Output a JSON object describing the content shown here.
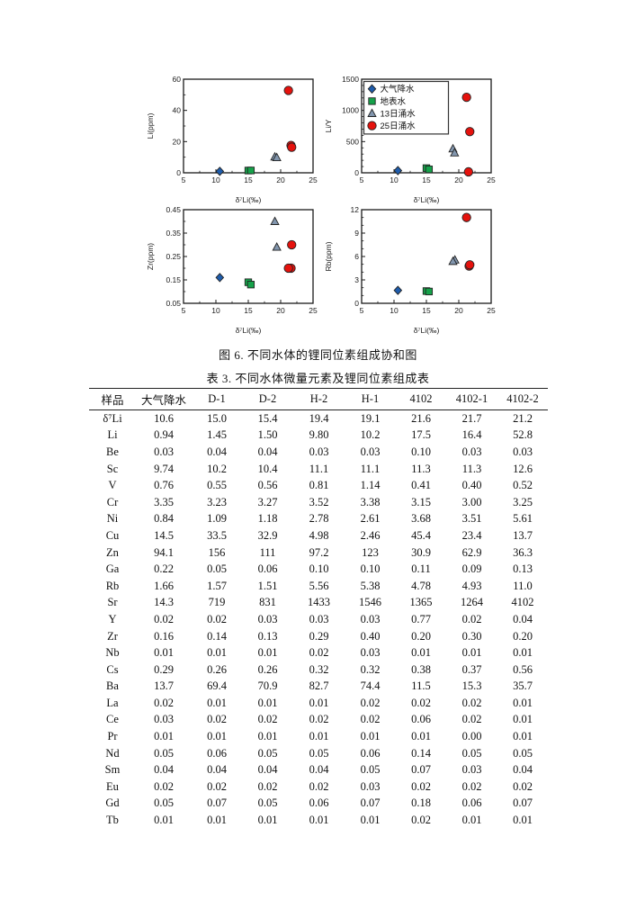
{
  "captions": {
    "figure": "图 6. 不同水体的锂同位素组成协和图",
    "table": "表 3. 不同水体微量元素及锂同位素组成表"
  },
  "colors": {
    "axis": "#1a1a1a",
    "marker_outline": "#222222",
    "precipitation_blue": "#1e5cac",
    "surface_green": "#16a24a",
    "inflow13_slate": "#8296ae",
    "inflow25_red": "#e5120d"
  },
  "legend": {
    "items": [
      {
        "label": "大气降水",
        "marker": "diamond",
        "color": "#1e5cac"
      },
      {
        "label": "地表水",
        "marker": "square",
        "color": "#16a24a"
      },
      {
        "label": "13日涌水",
        "marker": "triangle",
        "color": "#8296ae"
      },
      {
        "label": "25日涌水",
        "marker": "circle",
        "color": "#e5120d"
      }
    ]
  },
  "chart_data": [
    {
      "type": "scatter",
      "name": "li-ppm-vs-d7li",
      "xlabel": "δ⁷Li(‰)",
      "ylabel": "Li(ppm)",
      "xlim": [
        5,
        25
      ],
      "ylim": [
        0,
        60
      ],
      "xticks": [
        [
          5,
          "5"
        ],
        [
          10,
          "10"
        ],
        [
          15,
          "15"
        ],
        [
          20,
          "20"
        ],
        [
          25,
          "25"
        ]
      ],
      "yticks": [
        [
          0,
          "0"
        ],
        [
          20,
          "20"
        ],
        [
          40,
          "40"
        ],
        [
          60,
          "60"
        ]
      ],
      "xminor": [
        7.5,
        12.5,
        17.5,
        22.5
      ],
      "yminor": [
        10,
        30,
        50
      ],
      "legend": false,
      "series": [
        {
          "name": "大气降水",
          "points": [
            [
              10.6,
              0.94
            ]
          ]
        },
        {
          "name": "地表水",
          "points": [
            [
              15.0,
              1.45
            ],
            [
              15.4,
              1.5
            ]
          ]
        },
        {
          "name": "13日涌水",
          "points": [
            [
              19.1,
              10.2
            ],
            [
              19.4,
              9.8
            ]
          ]
        },
        {
          "name": "25日涌水",
          "points": [
            [
              21.2,
              52.8
            ],
            [
              21.6,
              17.5
            ],
            [
              21.7,
              16.4
            ]
          ]
        }
      ]
    },
    {
      "type": "scatter",
      "name": "li-y-ratio-vs-d7li",
      "xlabel": "δ⁷Li(‰)",
      "ylabel": "Li/Y",
      "xlim": [
        5,
        25
      ],
      "ylim": [
        0,
        1500
      ],
      "xticks": [
        [
          5,
          "5"
        ],
        [
          10,
          "10"
        ],
        [
          15,
          "15"
        ],
        [
          20,
          "20"
        ],
        [
          25,
          "25"
        ]
      ],
      "yticks": [
        [
          0,
          "0"
        ],
        [
          500,
          "500"
        ],
        [
          1000,
          "1000"
        ],
        [
          1500,
          "1500"
        ]
      ],
      "xminor": [
        7.5,
        12.5,
        17.5,
        22.5
      ],
      "yminor": [
        100,
        200,
        300,
        400,
        600,
        700,
        800,
        900,
        1100,
        1200,
        1300,
        1400
      ],
      "legend": true,
      "series": [
        {
          "name": "大气降水",
          "points": [
            [
              10.6,
              35
            ]
          ]
        },
        {
          "name": "地表水",
          "points": [
            [
              15.0,
              75
            ],
            [
              15.4,
              55
            ]
          ]
        },
        {
          "name": "13日涌水",
          "points": [
            [
              19.1,
              385
            ],
            [
              19.35,
              320
            ]
          ]
        },
        {
          "name": "25日涌水",
          "points": [
            [
              21.2,
              1210
            ],
            [
              21.7,
              660
            ],
            [
              21.5,
              15
            ]
          ]
        }
      ]
    },
    {
      "type": "scatter",
      "name": "zr-ppm-vs-d7li",
      "xlabel": "δ⁷Li(‰)",
      "ylabel": "Zr(ppm)",
      "xlim": [
        5,
        25
      ],
      "ylim": [
        0.05,
        0.45
      ],
      "xticks": [
        [
          5,
          "5"
        ],
        [
          10,
          "10"
        ],
        [
          15,
          "15"
        ],
        [
          20,
          "20"
        ],
        [
          25,
          "25"
        ]
      ],
      "yticks": [
        [
          0.05,
          "0.05"
        ],
        [
          0.15,
          "0.15"
        ],
        [
          0.25,
          "0.25"
        ],
        [
          0.35,
          "0.35"
        ],
        [
          0.45,
          "0.45"
        ]
      ],
      "xminor": [
        7.5,
        12.5,
        17.5,
        22.5
      ],
      "yminor": [
        0.1,
        0.2,
        0.3,
        0.4
      ],
      "legend": false,
      "series": [
        {
          "name": "大气降水",
          "points": [
            [
              10.6,
              0.16
            ]
          ]
        },
        {
          "name": "地表水",
          "points": [
            [
              15.0,
              0.14
            ],
            [
              15.4,
              0.13
            ]
          ]
        },
        {
          "name": "13日涌水",
          "points": [
            [
              19.1,
              0.4
            ],
            [
              19.4,
              0.29
            ]
          ]
        },
        {
          "name": "25日涌水",
          "points": [
            [
              21.7,
              0.3
            ],
            [
              21.6,
              0.2
            ],
            [
              21.2,
              0.2
            ]
          ]
        }
      ]
    },
    {
      "type": "scatter",
      "name": "rb-ppm-vs-d7li",
      "xlabel": "δ⁷Li(‰)",
      "ylabel": "Rb(ppm)",
      "xlim": [
        5,
        25
      ],
      "ylim": [
        0,
        12
      ],
      "xticks": [
        [
          5,
          "5"
        ],
        [
          10,
          "10"
        ],
        [
          15,
          "15"
        ],
        [
          20,
          "20"
        ],
        [
          25,
          "25"
        ]
      ],
      "yticks": [
        [
          0,
          "0"
        ],
        [
          3,
          "3"
        ],
        [
          6,
          "6"
        ],
        [
          9,
          "9"
        ],
        [
          12,
          "12"
        ]
      ],
      "xminor": [
        7.5,
        12.5,
        17.5,
        22.5
      ],
      "yminor": [
        1,
        2,
        4,
        5,
        7,
        8,
        10,
        11
      ],
      "legend": false,
      "series": [
        {
          "name": "大气降水",
          "points": [
            [
              10.6,
              1.66
            ]
          ]
        },
        {
          "name": "地表水",
          "points": [
            [
              15.0,
              1.57
            ],
            [
              15.4,
              1.51
            ]
          ]
        },
        {
          "name": "13日涌水",
          "points": [
            [
              19.4,
              5.56
            ],
            [
              19.1,
              5.38
            ]
          ]
        },
        {
          "name": "25日涌水",
          "points": [
            [
              21.2,
              11.0
            ],
            [
              21.6,
              4.78
            ],
            [
              21.7,
              4.93
            ]
          ]
        }
      ]
    }
  ],
  "table": {
    "columns": [
      "样品",
      "大气降水",
      "D-1",
      "D-2",
      "H-2",
      "H-1",
      "4102",
      "4102-1",
      "4102-2"
    ],
    "rows": [
      {
        "label": "δ⁷Li",
        "values": [
          "10.6",
          "15.0",
          "15.4",
          "19.4",
          "19.1",
          "21.6",
          "21.7",
          "21.2"
        ]
      },
      {
        "label": "Li",
        "values": [
          "0.94",
          "1.45",
          "1.50",
          "9.80",
          "10.2",
          "17.5",
          "16.4",
          "52.8"
        ]
      },
      {
        "label": "Be",
        "values": [
          "0.03",
          "0.04",
          "0.04",
          "0.03",
          "0.03",
          "0.10",
          "0.03",
          "0.03"
        ]
      },
      {
        "label": "Sc",
        "values": [
          "9.74",
          "10.2",
          "10.4",
          "11.1",
          "11.1",
          "11.3",
          "11.3",
          "12.6"
        ]
      },
      {
        "label": "V",
        "values": [
          "0.76",
          "0.55",
          "0.56",
          "0.81",
          "1.14",
          "0.41",
          "0.40",
          "0.52"
        ]
      },
      {
        "label": "Cr",
        "values": [
          "3.35",
          "3.23",
          "3.27",
          "3.52",
          "3.38",
          "3.15",
          "3.00",
          "3.25"
        ]
      },
      {
        "label": "Ni",
        "values": [
          "0.84",
          "1.09",
          "1.18",
          "2.78",
          "2.61",
          "3.68",
          "3.51",
          "5.61"
        ]
      },
      {
        "label": "Cu",
        "values": [
          "14.5",
          "33.5",
          "32.9",
          "4.98",
          "2.46",
          "45.4",
          "23.4",
          "13.7"
        ]
      },
      {
        "label": "Zn",
        "values": [
          "94.1",
          "156",
          "111",
          "97.2",
          "123",
          "30.9",
          "62.9",
          "36.3"
        ]
      },
      {
        "label": "Ga",
        "values": [
          "0.22",
          "0.05",
          "0.06",
          "0.10",
          "0.10",
          "0.11",
          "0.09",
          "0.13"
        ]
      },
      {
        "label": "Rb",
        "values": [
          "1.66",
          "1.57",
          "1.51",
          "5.56",
          "5.38",
          "4.78",
          "4.93",
          "11.0"
        ]
      },
      {
        "label": "Sr",
        "values": [
          "14.3",
          "719",
          "831",
          "1433",
          "1546",
          "1365",
          "1264",
          "4102"
        ]
      },
      {
        "label": "Y",
        "values": [
          "0.02",
          "0.02",
          "0.03",
          "0.03",
          "0.03",
          "0.77",
          "0.02",
          "0.04"
        ]
      },
      {
        "label": "Zr",
        "values": [
          "0.16",
          "0.14",
          "0.13",
          "0.29",
          "0.40",
          "0.20",
          "0.30",
          "0.20"
        ]
      },
      {
        "label": "Nb",
        "values": [
          "0.01",
          "0.01",
          "0.01",
          "0.02",
          "0.03",
          "0.01",
          "0.01",
          "0.01"
        ]
      },
      {
        "label": "Cs",
        "values": [
          "0.29",
          "0.26",
          "0.26",
          "0.32",
          "0.32",
          "0.38",
          "0.37",
          "0.56"
        ]
      },
      {
        "label": "Ba",
        "values": [
          "13.7",
          "69.4",
          "70.9",
          "82.7",
          "74.4",
          "11.5",
          "15.3",
          "35.7"
        ]
      },
      {
        "label": "La",
        "values": [
          "0.02",
          "0.01",
          "0.01",
          "0.01",
          "0.02",
          "0.02",
          "0.02",
          "0.01"
        ]
      },
      {
        "label": "Ce",
        "values": [
          "0.03",
          "0.02",
          "0.02",
          "0.02",
          "0.02",
          "0.06",
          "0.02",
          "0.01"
        ]
      },
      {
        "label": "Pr",
        "values": [
          "0.01",
          "0.01",
          "0.01",
          "0.01",
          "0.01",
          "0.01",
          "0.00",
          "0.01"
        ]
      },
      {
        "label": "Nd",
        "values": [
          "0.05",
          "0.06",
          "0.05",
          "0.05",
          "0.06",
          "0.14",
          "0.05",
          "0.05"
        ]
      },
      {
        "label": "Sm",
        "values": [
          "0.04",
          "0.04",
          "0.04",
          "0.04",
          "0.05",
          "0.07",
          "0.03",
          "0.04"
        ]
      },
      {
        "label": "Eu",
        "values": [
          "0.02",
          "0.02",
          "0.02",
          "0.02",
          "0.03",
          "0.02",
          "0.02",
          "0.02"
        ]
      },
      {
        "label": "Gd",
        "values": [
          "0.05",
          "0.07",
          "0.05",
          "0.06",
          "0.07",
          "0.18",
          "0.06",
          "0.07"
        ]
      },
      {
        "label": "Tb",
        "values": [
          "0.01",
          "0.01",
          "0.01",
          "0.01",
          "0.01",
          "0.02",
          "0.01",
          "0.01"
        ]
      }
    ]
  }
}
